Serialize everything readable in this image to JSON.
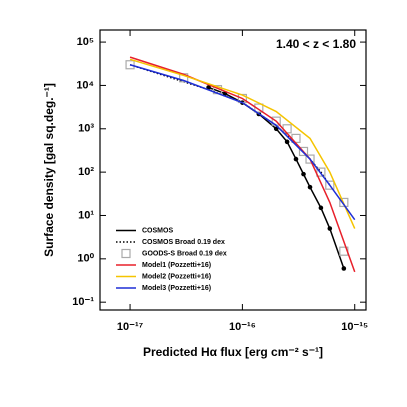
{
  "chart_data": {
    "type": "line",
    "annotation": "1.40 < z < 1.80",
    "xlabel": "Predicted Hα flux [erg cm⁻² s⁻¹]",
    "ylabel": "Surface density [gal sq.deg.⁻¹]",
    "xscale": "log",
    "yscale": "log",
    "xlim": [
      5.4e-18,
      1.26e-15
    ],
    "ylim": [
      0.066,
      190000
    ],
    "xticks": [
      {
        "value": 1e-17,
        "label": "10⁻¹⁷"
      },
      {
        "value": 1e-16,
        "label": "10⁻¹⁶"
      },
      {
        "value": 1e-15,
        "label": "10⁻¹⁵"
      }
    ],
    "yticks": [
      {
        "value": 0.1,
        "label": "10⁻¹"
      },
      {
        "value": 1,
        "label": "10⁰"
      },
      {
        "value": 10,
        "label": "10¹"
      },
      {
        "value": 100,
        "label": "10²"
      },
      {
        "value": 1000,
        "label": "10³"
      },
      {
        "value": 10000,
        "label": "10⁴"
      },
      {
        "value": 100000,
        "label": "10⁵"
      }
    ],
    "legend": "lower left",
    "series": [
      {
        "name": "COSMOS",
        "color": "#000000",
        "line": "solid",
        "marker": "dot",
        "x": [
          5e-17,
          7e-17,
          1e-16,
          1.4e-16,
          2e-16,
          2.5e-16,
          3e-16,
          3.5e-16,
          4e-16,
          5e-16,
          6e-16,
          8e-16
        ],
        "values": [
          9000,
          6500,
          4000,
          2200,
          1000,
          500,
          200,
          90,
          45,
          15,
          5,
          0.6
        ]
      },
      {
        "name": "COSMOS Broad 0.19 dex",
        "color": "#000000",
        "line": "dotted",
        "marker": null,
        "x": [
          1e-17,
          2e-17,
          5e-17,
          1e-16,
          2e-16,
          3e-16,
          4e-16,
          5e-16,
          6e-16
        ],
        "values": [
          30000,
          17000,
          8000,
          4000,
          1200,
          450,
          200,
          100,
          50
        ]
      },
      {
        "name": "GOODS-S Broad 0.19 dex",
        "color": "#aaaaaa",
        "line": "none",
        "marker": "square",
        "x": [
          1e-17,
          3e-17,
          6e-17,
          1e-16,
          1.4e-16,
          2e-16,
          2.5e-16,
          3e-16,
          3.5e-16,
          4e-16,
          5e-16,
          6e-16,
          8e-16,
          8e-16
        ],
        "values": [
          30000,
          15000,
          8000,
          5000,
          3000,
          1500,
          1000,
          600,
          300,
          200,
          100,
          50,
          20,
          1.5
        ]
      },
      {
        "name": "Model1 (Pozzetti+16)",
        "color": "#e8202a",
        "line": "solid",
        "marker": null,
        "x": [
          1e-17,
          3e-17,
          1e-16,
          2e-16,
          4e-16,
          6e-16,
          1e-15
        ],
        "values": [
          45000,
          18000,
          5000,
          1500,
          200,
          20,
          0.5
        ]
      },
      {
        "name": "Model2 (Pozzetti+16)",
        "color": "#f5c400",
        "line": "solid",
        "marker": null,
        "x": [
          1e-17,
          3e-17,
          1e-16,
          2e-16,
          4e-16,
          6e-16,
          1e-15
        ],
        "values": [
          40000,
          17000,
          6000,
          2500,
          600,
          100,
          5
        ]
      },
      {
        "name": "Model3 (Pozzetti+16)",
        "color": "#1f2fd6",
        "line": "solid",
        "marker": null,
        "x": [
          1e-17,
          3e-17,
          1e-16,
          2e-16,
          4e-16,
          6e-16,
          1e-15
        ],
        "values": [
          30000,
          13000,
          4000,
          1200,
          200,
          50,
          8
        ]
      }
    ]
  }
}
